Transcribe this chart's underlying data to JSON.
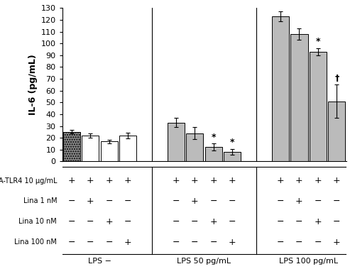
{
  "groups": [
    "LPS −",
    "LPS 50 pg/mL",
    "LPS 100 pg/mL"
  ],
  "bar_values": [
    [
      25,
      22,
      17,
      22
    ],
    [
      33,
      24,
      12,
      8
    ],
    [
      123,
      108,
      93,
      51
    ]
  ],
  "bar_errors": [
    [
      1.5,
      2,
      1.5,
      2.5
    ],
    [
      4,
      5,
      3,
      2.5
    ],
    [
      4,
      5,
      3,
      14
    ]
  ],
  "bar_colors": [
    [
      "#888888",
      "#ffffff",
      "#ffffff",
      "#ffffff"
    ],
    [
      "#bbbbbb",
      "#bbbbbb",
      "#bbbbbb",
      "#bbbbbb"
    ],
    [
      "#bbbbbb",
      "#bbbbbb",
      "#bbbbbb",
      "#bbbbbb"
    ]
  ],
  "bar_hatches": [
    [
      ".....",
      "",
      "",
      ""
    ],
    [
      "",
      "",
      "",
      ""
    ],
    [
      "",
      "",
      "",
      ""
    ]
  ],
  "ylabel": "IL-6 (pg/mL)",
  "ylim": [
    0,
    130
  ],
  "yticks": [
    0,
    10,
    20,
    30,
    40,
    50,
    60,
    70,
    80,
    90,
    100,
    110,
    120,
    130
  ],
  "group_labels": [
    "LPS −",
    "LPS 50 pg/mL",
    "LPS 100 pg/mL"
  ],
  "row_labels": [
    "A-TLR4 10 μg/mL",
    "Lina 1 nM",
    "Lina 10 nM",
    "Lina 100 nM"
  ],
  "row_signs": [
    [
      "+",
      "+",
      "+",
      "+",
      "+",
      "+",
      "+",
      "+",
      "+",
      "+",
      "+",
      "+"
    ],
    [
      "−",
      "+",
      "−",
      "−",
      "−",
      "+",
      "−",
      "−",
      "−",
      "+",
      "−",
      "−"
    ],
    [
      "−",
      "−",
      "+",
      "−",
      "−",
      "−",
      "+",
      "−",
      "−",
      "−",
      "+",
      "−"
    ],
    [
      "−",
      "−",
      "−",
      "+",
      "−",
      "−",
      "−",
      "+",
      "−",
      "−",
      "−",
      "+"
    ]
  ],
  "lps50_star_bars": [
    2,
    3
  ],
  "lps100_star_bars": [
    2
  ],
  "lps100_dagger_bars": [
    3
  ],
  "background_color": "#ffffff"
}
